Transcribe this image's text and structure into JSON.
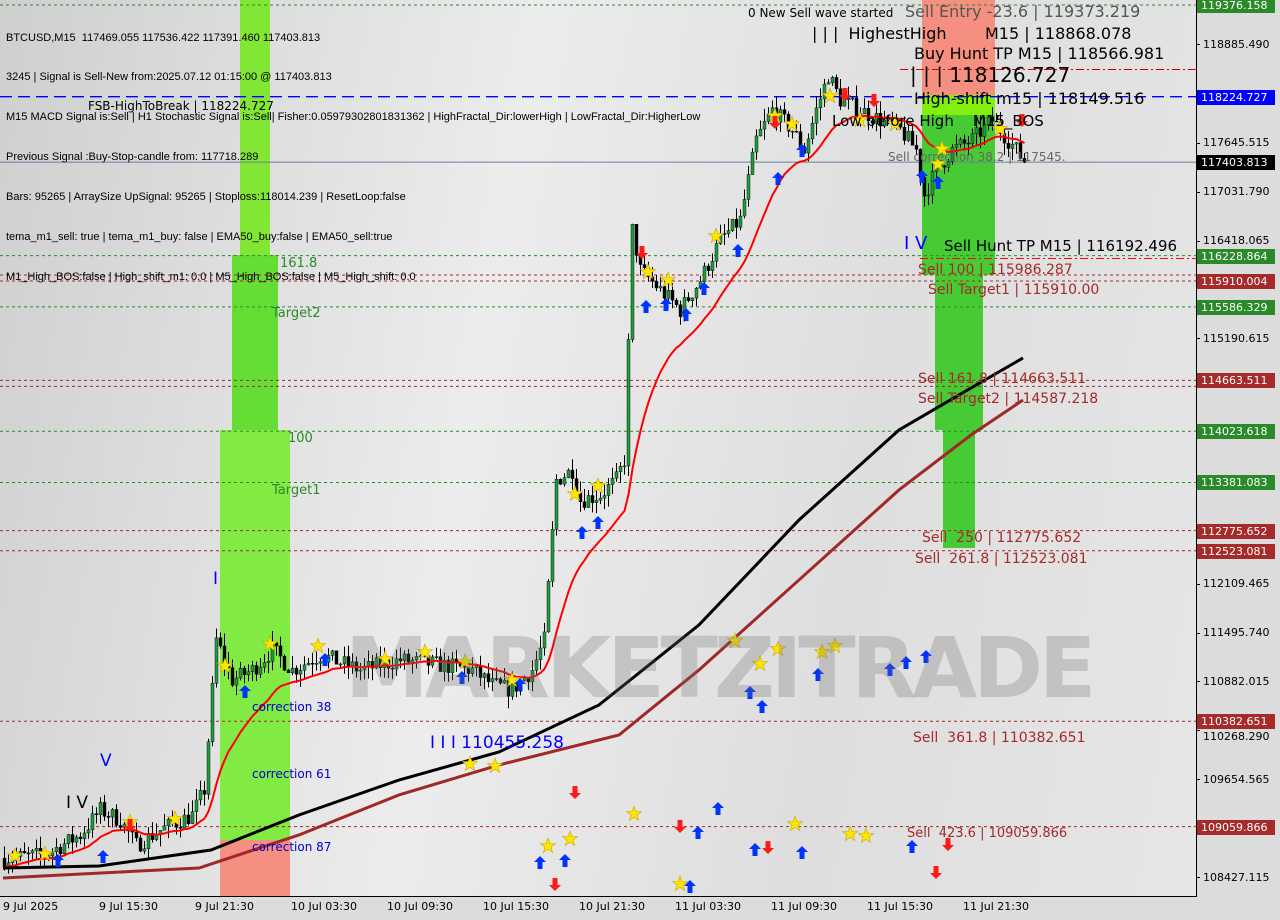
{
  "info_lines": [
    "BTCUSD,M15  117469.055 117536.422 117391.460 117403.813",
    "3245 | Signal is Sell-New from:2025.07.12 01:15:00 @ 117403.813",
    "M15 MACD Signal is:Sell | H1 Stochastic Signal is:Sell| Fisher:0.05979302801831362 | HighFractal_Dir:lowerHigh | LowFractal_Dir:HigherLow",
    "Previous Signal :Buy-Stop-candle from: 117718.289",
    "Bars: 95265 | ArraySize UpSignal: 95265 | Stoploss:118014.239 | ResetLoop:false",
    "tema_m1_sell: true | tema_m1_buy: false | EMA50_buy:false | EMA50_sell:true",
    "M1_High_BOS:false | High_shift_m1: 0.0 | M5_High_BOS:false | M5_High_shift: 0.0"
  ],
  "watermark": "MARKETZITRADE",
  "annotations": {
    "fsb": "FSB-HighToBreak | 118224.727",
    "new_wave": "0 New Sell wave started",
    "sell_entry": "Sell Entry -23.6 | 119373.219",
    "highest_high": "| | |  HighestHigh",
    "m15_high": "M15 | 118868.078",
    "buy_hunt_tp": "Buy Hunt TP M15 | 118566.981",
    "wave_118126": "| | | 118126.727",
    "high_shift": "High-shift m15 | 118149.516",
    "low_before_high": "Low before High    M15_BOS",
    "sell_corr_382": "Sell correction 38.2 | 117545.",
    "wave_iv_right": "I V",
    "sell_hunt_tp": "Sell Hunt TP M15 | 116192.496",
    "sell_100": "Sell 100 | 115986.287",
    "sell_target1": "Sell Target1 | 115910.00",
    "sell_1618": "Sell 161.8 | 114663.511",
    "sell_target2": "Sell Target2 | 114587.218",
    "sell_250": "Sell  250 | 112775.652",
    "sell_2618": "Sell  261.8 | 112523.081",
    "sell_3618": "Sell  361.8 | 110382.651",
    "sell_4236": "Sell  423.6 | 109059.866",
    "fib_1618": "161.8",
    "target2": "Target2",
    "fib_100": "100",
    "target1": "Target1",
    "correction_38": "correction 38",
    "correction_61": "correction 61",
    "correction_87": "correction 87",
    "wave_iii": "I I I 110455.258",
    "wave_v": "V",
    "wave_iv_left": "I V",
    "wave_i": "I"
  },
  "colors": {
    "bull": "#1e9c3a",
    "bear": "#000000",
    "ema_fast": "#ff0000",
    "ema_slow": "#000000",
    "ema_long": "#a02828",
    "buy_zone": "#3ec92a",
    "sell_zone": "#f58a7a",
    "level_green": "#2a8a2a",
    "level_red": "#a52a2a",
    "level_blue": "#0000ff"
  },
  "chart_data": {
    "type": "candlestick",
    "symbol": "BTCUSD",
    "timeframe": "M15",
    "ylim": [
      108427.115,
      119376.158
    ],
    "y_ticks": [
      "118885.490",
      "117645.515",
      "117031.790",
      "116418.065",
      "115190.615",
      "112109.465",
      "111495.740",
      "110882.015",
      "110268.290",
      "109654.565",
      "108427.115"
    ],
    "x_ticks": [
      "9 Jul 2025",
      "9 Jul 15:30",
      "9 Jul 21:30",
      "10 Jul 03:30",
      "10 Jul 09:30",
      "10 Jul 15:30",
      "10 Jul 21:30",
      "11 Jul 03:30",
      "11 Jul 09:30",
      "11 Jul 15:30",
      "11 Jul 21:30"
    ],
    "price_path": [
      [
        "2025-07-09 09:30",
        108665
      ],
      [
        "2025-07-09 12:00",
        108703
      ],
      [
        "2025-07-09 14:15",
        108954
      ],
      [
        "2025-07-09 15:30",
        109268
      ],
      [
        "2025-07-09 16:45",
        109142
      ],
      [
        "2025-07-09 17:45",
        108828
      ],
      [
        "2025-07-09 19:15",
        109017
      ],
      [
        "2025-07-09 21:15",
        109206
      ],
      [
        "2025-07-09 22:00",
        109520
      ],
      [
        "2025-07-09 22:45",
        111403
      ],
      [
        "2025-07-09 23:45",
        110901
      ],
      [
        "2025-07-10 01:00",
        111027
      ],
      [
        "2025-07-10 02:15",
        111278
      ],
      [
        "2025-07-10 03:30",
        111027
      ],
      [
        "2025-07-10 05:15",
        111215
      ],
      [
        "2025-07-10 07:45",
        111027
      ],
      [
        "2025-07-10 10:15",
        111152
      ],
      [
        "2025-07-10 12:45",
        111090
      ],
      [
        "2025-07-10 14:45",
        111027
      ],
      [
        "2025-07-10 16:00",
        110839
      ],
      [
        "2025-07-10 17:15",
        110775
      ],
      [
        "2025-07-10 18:30",
        111027
      ],
      [
        "2025-07-10 19:15",
        111403
      ],
      [
        "2025-07-10 20:00",
        113412
      ],
      [
        "2025-07-10 21:00",
        113538
      ],
      [
        "2025-07-10 21:30",
        113161
      ],
      [
        "2025-07-10 22:45",
        113224
      ],
      [
        "2025-07-10 23:45",
        113412
      ],
      [
        "2025-07-11 00:15",
        113663
      ],
      [
        "2025-07-11 00:45",
        116551
      ],
      [
        "2025-07-11 01:15",
        116049
      ],
      [
        "2025-07-11 02:30",
        115798
      ],
      [
        "2025-07-11 03:45",
        115547
      ],
      [
        "2025-07-11 05:00",
        115923
      ],
      [
        "2025-07-11 06:15",
        116426
      ],
      [
        "2025-07-11 07:30",
        116677
      ],
      [
        "2025-07-11 08:30",
        117681
      ],
      [
        "2025-07-11 09:30",
        118058
      ],
      [
        "2025-07-11 10:45",
        117807
      ],
      [
        "2025-07-11 11:30",
        117556
      ],
      [
        "2025-07-11 12:15",
        118058
      ],
      [
        "2025-07-11 13:00",
        118497
      ],
      [
        "2025-07-11 13:45",
        118184
      ],
      [
        "2025-07-11 15:00",
        118058
      ],
      [
        "2025-07-11 16:15",
        117932
      ],
      [
        "2025-07-11 17:30",
        117807
      ],
      [
        "2025-07-11 18:30",
        117556
      ],
      [
        "2025-07-11 19:00",
        116991
      ],
      [
        "2025-07-11 19:45",
        117304
      ],
      [
        "2025-07-11 20:45",
        117556
      ],
      [
        "2025-07-11 22:00",
        117681
      ],
      [
        "2025-07-11 23:15",
        117932
      ],
      [
        "2025-07-11 23:45",
        117807
      ],
      [
        "2025-07-12 00:45",
        117556
      ],
      [
        "2025-07-12 01:15",
        117403.813
      ]
    ],
    "ema_slow": [
      [
        "2025-07-09 09:30",
        108540
      ],
      [
        "2025-07-09 15:30",
        108565
      ],
      [
        "2025-07-09 22:30",
        108766
      ],
      [
        "2025-07-10 04:00",
        109206
      ],
      [
        "2025-07-10 10:15",
        109645
      ],
      [
        "2025-07-10 16:30",
        109997
      ],
      [
        "2025-07-10 22:45",
        110587
      ],
      [
        "2025-07-11 05:00",
        111592
      ],
      [
        "2025-07-11 11:15",
        112910
      ],
      [
        "2025-07-11 17:30",
        114040
      ],
      [
        "2025-07-11 21:15",
        114480
      ],
      [
        "2025-07-12 01:15",
        114944
      ]
    ],
    "ema_long": [
      [
        "2025-07-09 09:30",
        108415
      ],
      [
        "2025-07-09 21:45",
        108540
      ],
      [
        "2025-07-10 04:00",
        108955
      ],
      [
        "2025-07-10 10:15",
        109457
      ],
      [
        "2025-07-10 16:30",
        109834
      ],
      [
        "2025-07-11 00:00",
        110210
      ],
      [
        "2025-07-11 05:00",
        111027
      ],
      [
        "2025-07-11 11:15",
        112157
      ],
      [
        "2025-07-11 17:30",
        113287
      ],
      [
        "2025-07-11 22:00",
        113977
      ],
      [
        "2025-07-12 01:15",
        114416
      ]
    ],
    "levels": [
      {
        "price": "119376.158",
        "kind": "green"
      },
      {
        "price": "118224.727",
        "kind": "blue"
      },
      {
        "price": "117403.813",
        "kind": "current"
      },
      {
        "price": "116228.864",
        "kind": "green"
      },
      {
        "price": "115986.287",
        "kind": "red",
        "tag": false
      },
      {
        "price": "115910.004",
        "kind": "red"
      },
      {
        "price": "115586.329",
        "kind": "green"
      },
      {
        "price": "114663.511",
        "kind": "red"
      },
      {
        "price": "114587.218",
        "kind": "red",
        "tag": false
      },
      {
        "price": "114023.618",
        "kind": "green"
      },
      {
        "price": "113381.083",
        "kind": "green"
      },
      {
        "price": "112775.652",
        "kind": "red"
      },
      {
        "price": "112523.081",
        "kind": "red"
      },
      {
        "price": "110382.651",
        "kind": "red"
      },
      {
        "price": "109059.866",
        "kind": "red"
      }
    ]
  }
}
